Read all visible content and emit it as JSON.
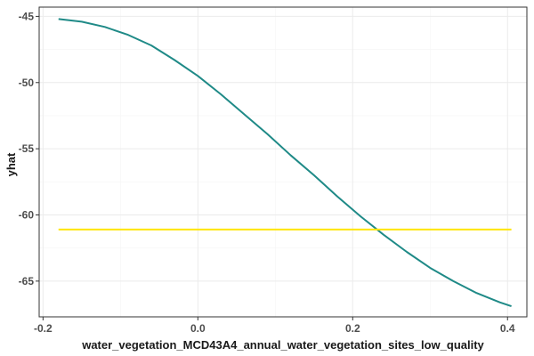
{
  "chart_data": {
    "type": "line",
    "xlabel": "water_vegetation_MCD43A4_annual_water_vegetation_sites_low_quality",
    "ylabel": "yhat",
    "xlim": [
      -0.205,
      0.425
    ],
    "ylim": [
      -67.7,
      -44.3
    ],
    "x_ticks": [
      -0.2,
      0.0,
      0.2,
      0.4
    ],
    "x_tick_labels": [
      "-0.2",
      "0.0",
      "0.2",
      "0.4"
    ],
    "y_ticks": [
      -65,
      -60,
      -55,
      -50,
      -45
    ],
    "y_tick_labels": [
      "-65",
      "-60",
      "-55",
      "-50",
      "-45"
    ],
    "grid": true,
    "background": "#ffffff",
    "panel_border": "#333333",
    "series": [
      {
        "color": "#1f8a87",
        "x": [
          -0.18,
          -0.15,
          -0.12,
          -0.09,
          -0.06,
          -0.03,
          0.0,
          0.03,
          0.06,
          0.09,
          0.12,
          0.15,
          0.18,
          0.21,
          0.24,
          0.27,
          0.3,
          0.33,
          0.36,
          0.39,
          0.405
        ],
        "y": [
          -45.2,
          -45.4,
          -45.8,
          -46.4,
          -47.2,
          -48.3,
          -49.5,
          -50.9,
          -52.4,
          -53.9,
          -55.5,
          -57.0,
          -58.6,
          -60.1,
          -61.5,
          -62.8,
          -64.0,
          -65.0,
          -65.9,
          -66.6,
          -66.9
        ]
      },
      {
        "color": "#ffe600",
        "x": [
          -0.18,
          0.405
        ],
        "y": [
          -61.1,
          -61.1
        ]
      }
    ]
  }
}
